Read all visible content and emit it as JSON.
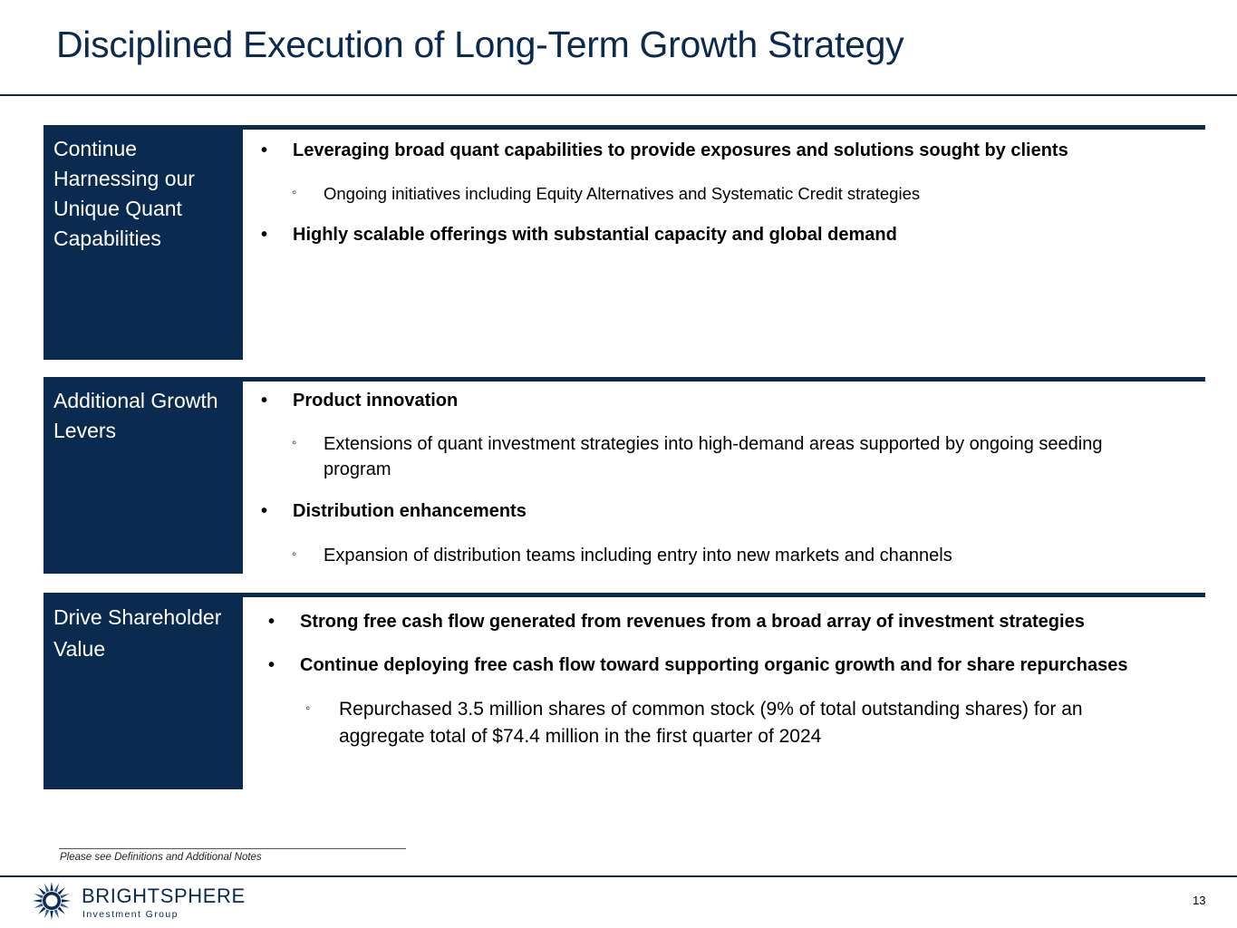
{
  "slide": {
    "title": "Disciplined Execution of Long-Term Growth Strategy",
    "page_number": "13",
    "footnote": "Please see Definitions and Additional Notes"
  },
  "sections": [
    {
      "label": "Continue Harnessing our Unique Quant Capabilities",
      "bullets": [
        "Leveraging broad quant capabilities to provide exposures and solutions sought by clients",
        "Highly scalable offerings with substantial capacity and global demand"
      ],
      "subs": [
        "Ongoing initiatives including Equity Alternatives and Systematic Credit strategies"
      ]
    },
    {
      "label": "Additional Growth Levers",
      "bullets": [
        "Product innovation",
        "Distribution enhancements"
      ],
      "subs": [
        "Extensions of quant investment strategies into high-demand areas supported by ongoing seeding program",
        "Expansion of distribution teams including entry into new markets and channels"
      ]
    },
    {
      "label": "Drive Shareholder Value",
      "bullets": [
        "Strong free cash flow generated from revenues from a broad array of investment strategies",
        "Continue deploying free cash flow toward supporting organic growth and for share repurchases"
      ],
      "subs": [
        "Repurchased  3.5 million shares of common stock (9% of total outstanding shares) for an aggregate total of $74.4 million in the first quarter of 2024"
      ]
    }
  ],
  "logo": {
    "name": "BRIGHTSPHERE",
    "tagline": "Investment Group",
    "icon": "sunburst-logo-icon"
  },
  "colors": {
    "navy": "#0b2a4f",
    "logo_blue": "#2c5aa0"
  },
  "glyphs": {
    "bullet": "•",
    "sub_bullet": "◦"
  }
}
